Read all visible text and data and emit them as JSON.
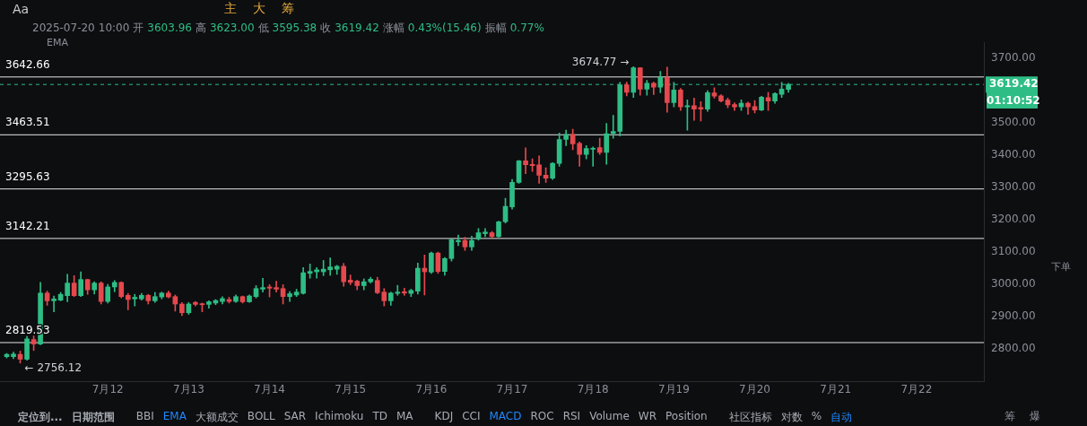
{
  "chart_data": {
    "type": "candlestick",
    "subtitle": "2025-07-20 10:00 开 3603.96 高 3623.00 低 3595.38 收 3619.42 涨幅 0.43%(15.46) 振幅 0.77%",
    "x": [
      "2025-07-10T18:00",
      "2025-07-10T20:00",
      "2025-07-10T22:00",
      "2025-07-11T00:00",
      "2025-07-11T02:00",
      "2025-07-11T04:00",
      "2025-07-11T06:00",
      "2025-07-11T08:00",
      "2025-07-11T10:00",
      "2025-07-11T12:00",
      "2025-07-11T14:00",
      "2025-07-11T16:00",
      "2025-07-11T18:00",
      "2025-07-11T20:00",
      "2025-07-11T22:00",
      "2025-07-12T00:00",
      "2025-07-12T02:00",
      "2025-07-12T04:00",
      "2025-07-12T06:00",
      "2025-07-12T08:00",
      "2025-07-12T10:00",
      "2025-07-12T12:00",
      "2025-07-12T14:00",
      "2025-07-12T16:00",
      "2025-07-12T18:00",
      "2025-07-12T20:00",
      "2025-07-12T22:00",
      "2025-07-13T00:00",
      "2025-07-13T02:00",
      "2025-07-13T04:00",
      "2025-07-13T06:00",
      "2025-07-13T08:00",
      "2025-07-13T10:00",
      "2025-07-13T12:00",
      "2025-07-13T14:00",
      "2025-07-13T16:00",
      "2025-07-13T18:00",
      "2025-07-13T20:00",
      "2025-07-13T22:00",
      "2025-07-14T00:00",
      "2025-07-14T02:00",
      "2025-07-14T04:00",
      "2025-07-14T06:00",
      "2025-07-14T08:00",
      "2025-07-14T10:00",
      "2025-07-14T12:00",
      "2025-07-14T14:00",
      "2025-07-14T16:00",
      "2025-07-14T18:00",
      "2025-07-14T20:00",
      "2025-07-14T22:00",
      "2025-07-15T00:00",
      "2025-07-15T02:00",
      "2025-07-15T04:00",
      "2025-07-15T06:00",
      "2025-07-15T08:00",
      "2025-07-15T10:00",
      "2025-07-15T12:00",
      "2025-07-15T14:00",
      "2025-07-15T16:00",
      "2025-07-15T18:00",
      "2025-07-15T20:00",
      "2025-07-15T22:00",
      "2025-07-16T00:00",
      "2025-07-16T02:00",
      "2025-07-16T04:00",
      "2025-07-16T06:00",
      "2025-07-16T08:00",
      "2025-07-16T10:00",
      "2025-07-16T12:00",
      "2025-07-16T14:00",
      "2025-07-16T16:00",
      "2025-07-16T18:00",
      "2025-07-16T20:00",
      "2025-07-16T22:00",
      "2025-07-17T00:00",
      "2025-07-17T02:00",
      "2025-07-17T04:00",
      "2025-07-17T06:00",
      "2025-07-17T08:00",
      "2025-07-17T10:00",
      "2025-07-17T12:00",
      "2025-07-17T14:00",
      "2025-07-17T16:00",
      "2025-07-17T18:00",
      "2025-07-17T20:00",
      "2025-07-17T22:00",
      "2025-07-18T00:00",
      "2025-07-18T02:00",
      "2025-07-18T04:00",
      "2025-07-18T06:00",
      "2025-07-18T08:00",
      "2025-07-18T10:00",
      "2025-07-18T12:00",
      "2025-07-18T14:00",
      "2025-07-18T16:00",
      "2025-07-18T18:00",
      "2025-07-18T20:00",
      "2025-07-18T22:00",
      "2025-07-19T00:00",
      "2025-07-19T02:00",
      "2025-07-19T04:00",
      "2025-07-19T06:00",
      "2025-07-19T08:00",
      "2025-07-19T10:00",
      "2025-07-19T12:00",
      "2025-07-19T14:00",
      "2025-07-19T16:00",
      "2025-07-19T18:00",
      "2025-07-19T20:00",
      "2025-07-19T22:00",
      "2025-07-20T00:00",
      "2025-07-20T02:00",
      "2025-07-20T04:00",
      "2025-07-20T06:00",
      "2025-07-20T08:00",
      "2025-07-20T10:00"
    ],
    "ohlc": [
      [
        2776,
        2786,
        2772,
        2783
      ],
      [
        2776,
        2790,
        2770,
        2784
      ],
      [
        2783,
        2793,
        2756.12,
        2768
      ],
      [
        2768,
        2839,
        2765,
        2831
      ],
      [
        2829,
        2840,
        2795,
        2815
      ],
      [
        2815,
        3006,
        2813,
        2973
      ],
      [
        2973,
        2979,
        2935,
        2949
      ],
      [
        2949,
        2964,
        2915,
        2955
      ],
      [
        2951,
        2975,
        2949,
        2969
      ],
      [
        2965,
        3031,
        2946,
        3004
      ],
      [
        3004,
        3027,
        2962,
        2965
      ],
      [
        2965,
        3039,
        2962,
        3015
      ],
      [
        3015,
        3016,
        2969,
        2983
      ],
      [
        2983,
        3008,
        2970,
        3004
      ],
      [
        3004,
        3008,
        2939,
        2947
      ],
      [
        2947,
        3000,
        2942,
        2992
      ],
      [
        2992,
        3012,
        2977,
        3006
      ],
      [
        3006,
        3008,
        2958,
        2962
      ],
      [
        2966,
        2972,
        2921,
        2953
      ],
      [
        2955,
        2969,
        2933,
        2960
      ],
      [
        2955,
        2972,
        2951,
        2966
      ],
      [
        2966,
        2969,
        2939,
        2949
      ],
      [
        2949,
        2975,
        2944,
        2962
      ],
      [
        2961,
        2976,
        2955,
        2973
      ],
      [
        2973,
        2979,
        2958,
        2961
      ],
      [
        2962,
        2967,
        2917,
        2939
      ],
      [
        2939,
        2944,
        2903,
        2912
      ],
      [
        2912,
        2944,
        2907,
        2939
      ],
      [
        2944,
        2947,
        2933,
        2938
      ],
      [
        2940,
        2942,
        2915,
        2937
      ],
      [
        2938,
        2949,
        2926,
        2946
      ],
      [
        2942,
        2953,
        2937,
        2950
      ],
      [
        2947,
        2962,
        2939,
        2956
      ],
      [
        2953,
        2960,
        2942,
        2947
      ],
      [
        2947,
        2967,
        2944,
        2962
      ],
      [
        2962,
        2964,
        2942,
        2946
      ],
      [
        2946,
        2967,
        2944,
        2964
      ],
      [
        2962,
        2996,
        2958,
        2987
      ],
      [
        2985,
        3019,
        2976,
        2990
      ],
      [
        2992,
        2999,
        2961,
        2988
      ],
      [
        2990,
        3010,
        2976,
        2985
      ],
      [
        2987,
        2999,
        2939,
        2962
      ],
      [
        2962,
        2978,
        2947,
        2971
      ],
      [
        2967,
        2985,
        2962,
        2976
      ],
      [
        2972,
        3052,
        2970,
        3036
      ],
      [
        3034,
        3063,
        3019,
        3040
      ],
      [
        3039,
        3052,
        3019,
        3045
      ],
      [
        3039,
        3074,
        3027,
        3047
      ],
      [
        3045,
        3082,
        3028,
        3054
      ],
      [
        3047,
        3059,
        3031,
        3056
      ],
      [
        3056,
        3065,
        2994,
        3008
      ],
      [
        3013,
        3029,
        2999,
        3006
      ],
      [
        3010,
        3013,
        2983,
        2996
      ],
      [
        2996,
        3017,
        2983,
        3008
      ],
      [
        3008,
        3022,
        3004,
        3016
      ],
      [
        3012,
        3022,
        2971,
        2974
      ],
      [
        2976,
        2987,
        2933,
        2949
      ],
      [
        2949,
        2976,
        2935,
        2973
      ],
      [
        2972,
        2997,
        2966,
        2976
      ],
      [
        2977,
        2988,
        2966,
        2973
      ],
      [
        2972,
        2985,
        2962,
        2981
      ],
      [
        2979,
        3066,
        2970,
        3050
      ],
      [
        3050,
        3091,
        2967,
        3039
      ],
      [
        3038,
        3100,
        3034,
        3097
      ],
      [
        3097,
        3100,
        3034,
        3040
      ],
      [
        3040,
        3083,
        3028,
        3080
      ],
      [
        3080,
        3141,
        3072,
        3139
      ],
      [
        3132,
        3153,
        3120,
        3136
      ],
      [
        3136,
        3146,
        3105,
        3116
      ],
      [
        3116,
        3149,
        3105,
        3136
      ],
      [
        3141,
        3173,
        3137,
        3160
      ],
      [
        3157,
        3173,
        3148,
        3162
      ],
      [
        3160,
        3164,
        3145,
        3148
      ],
      [
        3148,
        3196,
        3146,
        3194
      ],
      [
        3194,
        3267,
        3190,
        3242
      ],
      [
        3240,
        3325,
        3233,
        3316
      ],
      [
        3316,
        3384,
        3313,
        3383
      ],
      [
        3383,
        3423,
        3343,
        3371
      ],
      [
        3372,
        3389,
        3350,
        3368
      ],
      [
        3370,
        3398,
        3313,
        3338
      ],
      [
        3338,
        3361,
        3316,
        3329
      ],
      [
        3329,
        3377,
        3325,
        3375
      ],
      [
        3375,
        3469,
        3366,
        3449
      ],
      [
        3449,
        3478,
        3430,
        3465
      ],
      [
        3465,
        3481,
        3417,
        3435
      ],
      [
        3437,
        3441,
        3366,
        3403
      ],
      [
        3403,
        3430,
        3389,
        3421
      ],
      [
        3419,
        3426,
        3366,
        3421
      ],
      [
        3424,
        3453,
        3403,
        3409
      ],
      [
        3409,
        3499,
        3372,
        3467
      ],
      [
        3467,
        3524,
        3453,
        3474
      ],
      [
        3474,
        3626,
        3460,
        3618
      ],
      [
        3618,
        3627,
        3584,
        3595
      ],
      [
        3595,
        3674.77,
        3579,
        3671
      ],
      [
        3671,
        3672,
        3586,
        3605
      ],
      [
        3605,
        3632,
        3586,
        3623
      ],
      [
        3623,
        3627,
        3588,
        3611
      ],
      [
        3611,
        3660,
        3594,
        3641
      ],
      [
        3641,
        3673,
        3533,
        3563
      ],
      [
        3563,
        3626,
        3550,
        3602
      ],
      [
        3602,
        3607,
        3539,
        3550
      ],
      [
        3550,
        3572,
        3478,
        3554
      ],
      [
        3554,
        3577,
        3508,
        3543
      ],
      [
        3548,
        3566,
        3506,
        3543
      ],
      [
        3543,
        3600,
        3536,
        3594
      ],
      [
        3593,
        3609,
        3577,
        3583
      ],
      [
        3584,
        3588,
        3565,
        3568
      ],
      [
        3571,
        3577,
        3547,
        3556
      ],
      [
        3557,
        3563,
        3539,
        3550
      ],
      [
        3550,
        3572,
        3539,
        3561
      ],
      [
        3561,
        3565,
        3527,
        3550
      ],
      [
        3551,
        3570,
        3531,
        3540
      ],
      [
        3540,
        3583,
        3538,
        3580
      ],
      [
        3579,
        3595,
        3539,
        3568
      ],
      [
        3568,
        3594,
        3561,
        3591
      ],
      [
        3589,
        3626,
        3579,
        3605
      ],
      [
        3603.96,
        3623.0,
        3595.38,
        3619.42
      ]
    ],
    "colors": [
      "#2ebd85",
      "#2ebd85",
      "#e5484d",
      "#2ebd85",
      "#e5484d",
      "#2ebd85",
      "#e5484d",
      "#2ebd85",
      "#2ebd85",
      "#2ebd85",
      "#e5484d",
      "#2ebd85",
      "#e5484d",
      "#2ebd85",
      "#e5484d",
      "#2ebd85",
      "#2ebd85",
      "#e5484d",
      "#e5484d",
      "#2ebd85",
      "#2ebd85",
      "#e5484d",
      "#2ebd85",
      "#2ebd85",
      "#e5484d",
      "#e5484d",
      "#e5484d",
      "#2ebd85",
      "#e5484d",
      "#e5484d",
      "#2ebd85",
      "#2ebd85",
      "#2ebd85",
      "#e5484d",
      "#2ebd85",
      "#e5484d",
      "#2ebd85",
      "#2ebd85",
      "#2ebd85",
      "#e5484d",
      "#e5484d",
      "#e5484d",
      "#2ebd85",
      "#2ebd85",
      "#2ebd85",
      "#2ebd85",
      "#2ebd85",
      "#2ebd85",
      "#2ebd85",
      "#2ebd85",
      "#e5484d",
      "#e5484d",
      "#e5484d",
      "#2ebd85",
      "#2ebd85",
      "#e5484d",
      "#e5484d",
      "#2ebd85",
      "#2ebd85",
      "#e5484d",
      "#2ebd85",
      "#2ebd85",
      "#e5484d",
      "#2ebd85",
      "#e5484d",
      "#2ebd85",
      "#2ebd85",
      "#2ebd85",
      "#e5484d",
      "#2ebd85",
      "#2ebd85",
      "#2ebd85",
      "#e5484d",
      "#2ebd85",
      "#2ebd85",
      "#2ebd85",
      "#2ebd85",
      "#e5484d",
      "#e5484d",
      "#e5484d",
      "#e5484d",
      "#2ebd85",
      "#2ebd85",
      "#2ebd85",
      "#e5484d",
      "#e5484d",
      "#2ebd85",
      "#2ebd85",
      "#e5484d",
      "#2ebd85",
      "#2ebd85",
      "#2ebd85",
      "#e5484d",
      "#2ebd85",
      "#e5484d",
      "#2ebd85",
      "#e5484d",
      "#2ebd85",
      "#e5484d",
      "#2ebd85",
      "#e5484d",
      "#2ebd85",
      "#e5484d",
      "#e5484d",
      "#2ebd85",
      "#e5484d",
      "#e5484d",
      "#e5484d",
      "#e5484d",
      "#2ebd85",
      "#e5484d",
      "#e5484d",
      "#2ebd85",
      "#e5484d",
      "#2ebd85",
      "#2ebd85",
      "#2ebd85"
    ],
    "xlim": [
      "2025-07-10T16:00",
      "2025-07-22T20:00"
    ],
    "xticks": [
      {
        "value": "2025-07-12",
        "label": "7月12"
      },
      {
        "value": "2025-07-13",
        "label": "7月13"
      },
      {
        "value": "2025-07-14",
        "label": "7月14"
      },
      {
        "value": "2025-07-15",
        "label": "7月15"
      },
      {
        "value": "2025-07-16",
        "label": "7月16"
      },
      {
        "value": "2025-07-17",
        "label": "7月17"
      },
      {
        "value": "2025-07-18",
        "label": "7月18"
      },
      {
        "value": "2025-07-19",
        "label": "7月19"
      },
      {
        "value": "2025-07-20",
        "label": "7月20"
      },
      {
        "value": "2025-07-21",
        "label": "7月21"
      },
      {
        "value": "2025-07-22",
        "label": "7月22"
      }
    ],
    "ylim": [
      2700,
      3750
    ],
    "yticks": [
      {
        "value": 2800,
        "label": "2800.00"
      },
      {
        "value": 2900,
        "label": "2900.00"
      },
      {
        "value": 3000,
        "label": "3000.00"
      },
      {
        "value": 3100,
        "label": "3100.00"
      },
      {
        "value": 3200,
        "label": "3200.00"
      },
      {
        "value": 3300,
        "label": "3300.00"
      },
      {
        "value": 3400,
        "label": "3400.00"
      },
      {
        "value": 3500,
        "label": "3500.00"
      },
      {
        "value": 3700,
        "label": "3700.00"
      }
    ],
    "ref_lines": [
      {
        "axis": "y",
        "value": 3642.66,
        "label": "3642.66",
        "color": "#e6e6e6"
      },
      {
        "axis": "y",
        "value": 3463.51,
        "label": "3463.51",
        "color": "#e6e6e6"
      },
      {
        "axis": "y",
        "value": 3295.63,
        "label": "3295.63",
        "color": "#e6e6e6"
      },
      {
        "axis": "y",
        "value": 3142.21,
        "label": "3142.21",
        "color": "#e6e6e6"
      },
      {
        "axis": "y",
        "value": 2819.53,
        "label": "2819.53",
        "color": "#e6e6e6"
      },
      {
        "axis": "y",
        "value": 3619.42,
        "label": "3619.42",
        "color": "#2ebd85",
        "line_style": "dashed"
      }
    ],
    "annotations": [
      {
        "text": "3674.77 →",
        "x": "2025-07-18T12:00",
        "y": 3674.77
      },
      {
        "text": "← 2756.12",
        "x": "2025-07-10T22:00",
        "y": 2756.12
      },
      "EMA",
      "01:10:52",
      "Aa",
      "主",
      "大",
      "筹",
      "定位到...",
      "日期范围",
      "BBI",
      "EMA",
      "大额成交",
      "BOLL",
      "SAR",
      "Ichimoku",
      "TD",
      "MA",
      "KDJ",
      "CCI",
      "MACD",
      "ROC",
      "RSI",
      "Volume",
      "WR",
      "Position",
      "社区指标",
      "对数",
      "%",
      "自动",
      "下单",
      "筹",
      "爆"
    ]
  }
}
